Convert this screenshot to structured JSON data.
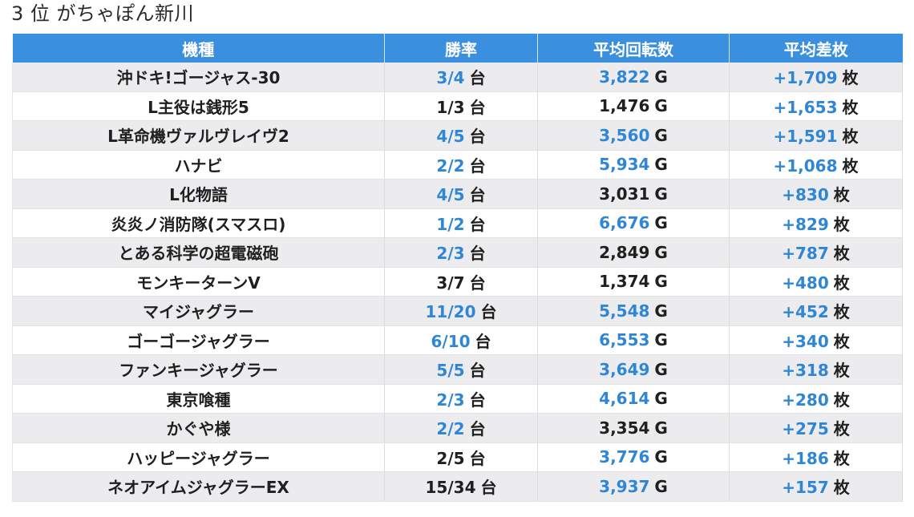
{
  "title": "3 位 がちゃぽん新川",
  "headers": [
    "機種",
    "勝率",
    "平均回転数",
    "平均差枚"
  ],
  "units": {
    "win": "台",
    "spin": "G",
    "diff": "枚"
  },
  "rows": [
    {
      "name": "沖ドキ!ゴージャス-30",
      "win": "3/4",
      "win_hl": true,
      "spins": "3,822",
      "spins_hl": true,
      "diff": "+1,709"
    },
    {
      "name": "L主役は銭形5",
      "win": "1/3",
      "win_hl": false,
      "spins": "1,476",
      "spins_hl": false,
      "diff": "+1,653"
    },
    {
      "name": "L革命機ヴァルヴレイヴ2",
      "win": "4/5",
      "win_hl": true,
      "spins": "3,560",
      "spins_hl": true,
      "diff": "+1,591"
    },
    {
      "name": "ハナビ",
      "win": "2/2",
      "win_hl": true,
      "spins": "5,934",
      "spins_hl": true,
      "diff": "+1,068"
    },
    {
      "name": "L化物語",
      "win": "4/5",
      "win_hl": true,
      "spins": "3,031",
      "spins_hl": false,
      "diff": "+830"
    },
    {
      "name": "炎炎ノ消防隊(スマスロ)",
      "win": "1/2",
      "win_hl": true,
      "spins": "6,676",
      "spins_hl": true,
      "diff": "+829"
    },
    {
      "name": "とある科学の超電磁砲",
      "win": "2/3",
      "win_hl": true,
      "spins": "2,849",
      "spins_hl": false,
      "diff": "+787"
    },
    {
      "name": "モンキーターンV",
      "win": "3/7",
      "win_hl": false,
      "spins": "1,374",
      "spins_hl": false,
      "diff": "+480"
    },
    {
      "name": "マイジャグラー",
      "win": "11/20",
      "win_hl": true,
      "spins": "5,548",
      "spins_hl": true,
      "diff": "+452"
    },
    {
      "name": "ゴーゴージャグラー",
      "win": "6/10",
      "win_hl": true,
      "spins": "6,553",
      "spins_hl": true,
      "diff": "+340"
    },
    {
      "name": "ファンキージャグラー",
      "win": "5/5",
      "win_hl": true,
      "spins": "3,649",
      "spins_hl": true,
      "diff": "+318"
    },
    {
      "name": "東京喰種",
      "win": "2/3",
      "win_hl": true,
      "spins": "4,614",
      "spins_hl": true,
      "diff": "+280"
    },
    {
      "name": "かぐや様",
      "win": "2/2",
      "win_hl": true,
      "spins": "3,354",
      "spins_hl": false,
      "diff": "+275"
    },
    {
      "name": "ハッピージャグラー",
      "win": "2/5",
      "win_hl": false,
      "spins": "3,776",
      "spins_hl": true,
      "diff": "+186"
    },
    {
      "name": "ネオアイムジャグラーEX",
      "win": "15/34",
      "win_hl": false,
      "spins": "3,937",
      "spins_hl": true,
      "diff": "+157"
    }
  ],
  "colors": {
    "header_bg": "#3a8fde",
    "highlight": "#2f86d6",
    "row_alt": "#ececef"
  }
}
